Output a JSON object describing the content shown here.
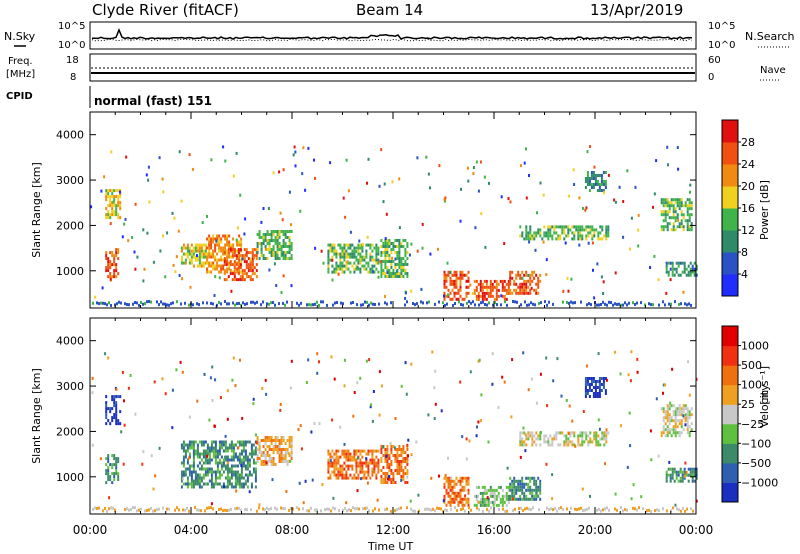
{
  "header": {
    "station": "Clyde River (fitACF)",
    "beam": "Beam 14",
    "date": "13/Apr/2019"
  },
  "top_panels": {
    "nsky_label": "N.Sky",
    "nsearch_label": "N.Search",
    "noise_ticks_left": [
      "10^5",
      "10^0"
    ],
    "noise_ticks_right": [
      "10^5",
      "10^0"
    ],
    "freq_label_line1": "Freq.",
    "freq_label_line2": "[MHz]",
    "freq_ticks": [
      "18",
      "8"
    ],
    "nave_label": "Nave",
    "nave_ticks": [
      "60",
      "0"
    ],
    "cpid_label": "CPID",
    "cpid_value": "normal (fast) 151"
  },
  "chart_data": [
    {
      "type": "heatmap",
      "quantity": "power",
      "ylabel": "Slant Range [km]",
      "xlabel": "Time UT",
      "y_ticks": [
        "1000",
        "2000",
        "3000",
        "4000"
      ],
      "ylim": [
        180,
        4500
      ],
      "x_ticks": [
        "00:00",
        "04:00",
        "08:00",
        "12:00",
        "16:00",
        "20:00",
        "00:00"
      ],
      "xlim_hours": [
        0,
        24
      ],
      "colorbar": {
        "label": "Power [dB]",
        "ticks": [
          "4",
          "8",
          "12",
          "16",
          "20",
          "24",
          "28"
        ],
        "colors": [
          "#1f2dff",
          "#2a52c4",
          "#2f8a6a",
          "#40b44a",
          "#f0d020",
          "#f08a10",
          "#f05010",
          "#e01010"
        ]
      },
      "regions": [
        {
          "t0": 0.6,
          "t1": 1.2,
          "r0": 2200,
          "r1": 2800,
          "level": 4
        },
        {
          "t0": 0.6,
          "t1": 1.1,
          "r0": 900,
          "r1": 1500,
          "level": 6
        },
        {
          "t0": 3.6,
          "t1": 4.6,
          "r0": 1100,
          "r1": 1600,
          "level": 4
        },
        {
          "t0": 4.6,
          "t1": 6.0,
          "r0": 1000,
          "r1": 1800,
          "level": 5
        },
        {
          "t0": 5.3,
          "t1": 6.6,
          "r0": 800,
          "r1": 1500,
          "level": 6
        },
        {
          "t0": 6.6,
          "t1": 8.0,
          "r0": 1300,
          "r1": 1900,
          "level": 3
        },
        {
          "t0": 9.4,
          "t1": 11.4,
          "r0": 1000,
          "r1": 1600,
          "level": 3
        },
        {
          "t0": 11.5,
          "t1": 12.6,
          "r0": 900,
          "r1": 1700,
          "level": 3
        },
        {
          "t0": 14.0,
          "t1": 15.0,
          "r0": 400,
          "r1": 1000,
          "level": 6
        },
        {
          "t0": 15.2,
          "t1": 16.6,
          "r0": 400,
          "r1": 800,
          "level": 6
        },
        {
          "t0": 16.6,
          "t1": 17.8,
          "r0": 500,
          "r1": 1000,
          "level": 6
        },
        {
          "t0": 17.0,
          "t1": 20.5,
          "r0": 1700,
          "r1": 2000,
          "level": 3
        },
        {
          "t0": 19.6,
          "t1": 20.4,
          "r0": 2800,
          "r1": 3200,
          "level": 2
        },
        {
          "t0": 22.6,
          "t1": 23.8,
          "r0": 1900,
          "r1": 2600,
          "level": 3
        },
        {
          "t0": 22.8,
          "t1": 24.0,
          "r0": 900,
          "r1": 1200,
          "level": 2
        }
      ]
    },
    {
      "type": "heatmap",
      "quantity": "velocity",
      "ylabel": "Slant Range [km]",
      "xlabel": "Time UT",
      "y_ticks": [
        "1000",
        "2000",
        "3000",
        "4000"
      ],
      "ylim": [
        180,
        4500
      ],
      "x_ticks": [
        "00:00",
        "04:00",
        "08:00",
        "12:00",
        "16:00",
        "20:00",
        "00:00"
      ],
      "xlim_hours": [
        0,
        24
      ],
      "colorbar": {
        "label": "Velocity",
        "unit": "[m s⁻¹]",
        "ticks": [
          "1000",
          "500",
          "100",
          "25",
          "−25",
          "−100",
          "−500",
          "−1000"
        ],
        "colors": [
          "#1a2ec0",
          "#2f5fb0",
          "#3d8a6a",
          "#5fc040",
          "#c8c8c8",
          "#f0a020",
          "#f07010",
          "#f03010",
          "#e00000"
        ]
      },
      "regions": [
        {
          "t0": 0.6,
          "t1": 1.2,
          "r0": 2200,
          "r1": 2800,
          "level": 0
        },
        {
          "t0": 0.6,
          "t1": 1.1,
          "r0": 900,
          "r1": 1500,
          "level": 2
        },
        {
          "t0": 3.6,
          "t1": 6.6,
          "r0": 800,
          "r1": 1800,
          "level": 2
        },
        {
          "t0": 6.6,
          "t1": 8.0,
          "r0": 1300,
          "r1": 1900,
          "level": 5
        },
        {
          "t0": 9.4,
          "t1": 11.4,
          "r0": 1000,
          "r1": 1600,
          "level": 6
        },
        {
          "t0": 11.5,
          "t1": 12.6,
          "r0": 900,
          "r1": 1700,
          "level": 6
        },
        {
          "t0": 14.0,
          "t1": 15.0,
          "r0": 400,
          "r1": 1000,
          "level": 6
        },
        {
          "t0": 15.2,
          "t1": 16.6,
          "r0": 400,
          "r1": 800,
          "level": 3
        },
        {
          "t0": 16.6,
          "t1": 17.8,
          "r0": 500,
          "r1": 1000,
          "level": 2
        },
        {
          "t0": 17.0,
          "t1": 20.5,
          "r0": 1700,
          "r1": 2000,
          "level": 4
        },
        {
          "t0": 19.6,
          "t1": 20.4,
          "r0": 2800,
          "r1": 3200,
          "level": 0
        },
        {
          "t0": 22.6,
          "t1": 23.8,
          "r0": 1900,
          "r1": 2600,
          "level": 4
        },
        {
          "t0": 22.8,
          "t1": 24.0,
          "r0": 900,
          "r1": 1200,
          "level": 2
        }
      ]
    }
  ]
}
